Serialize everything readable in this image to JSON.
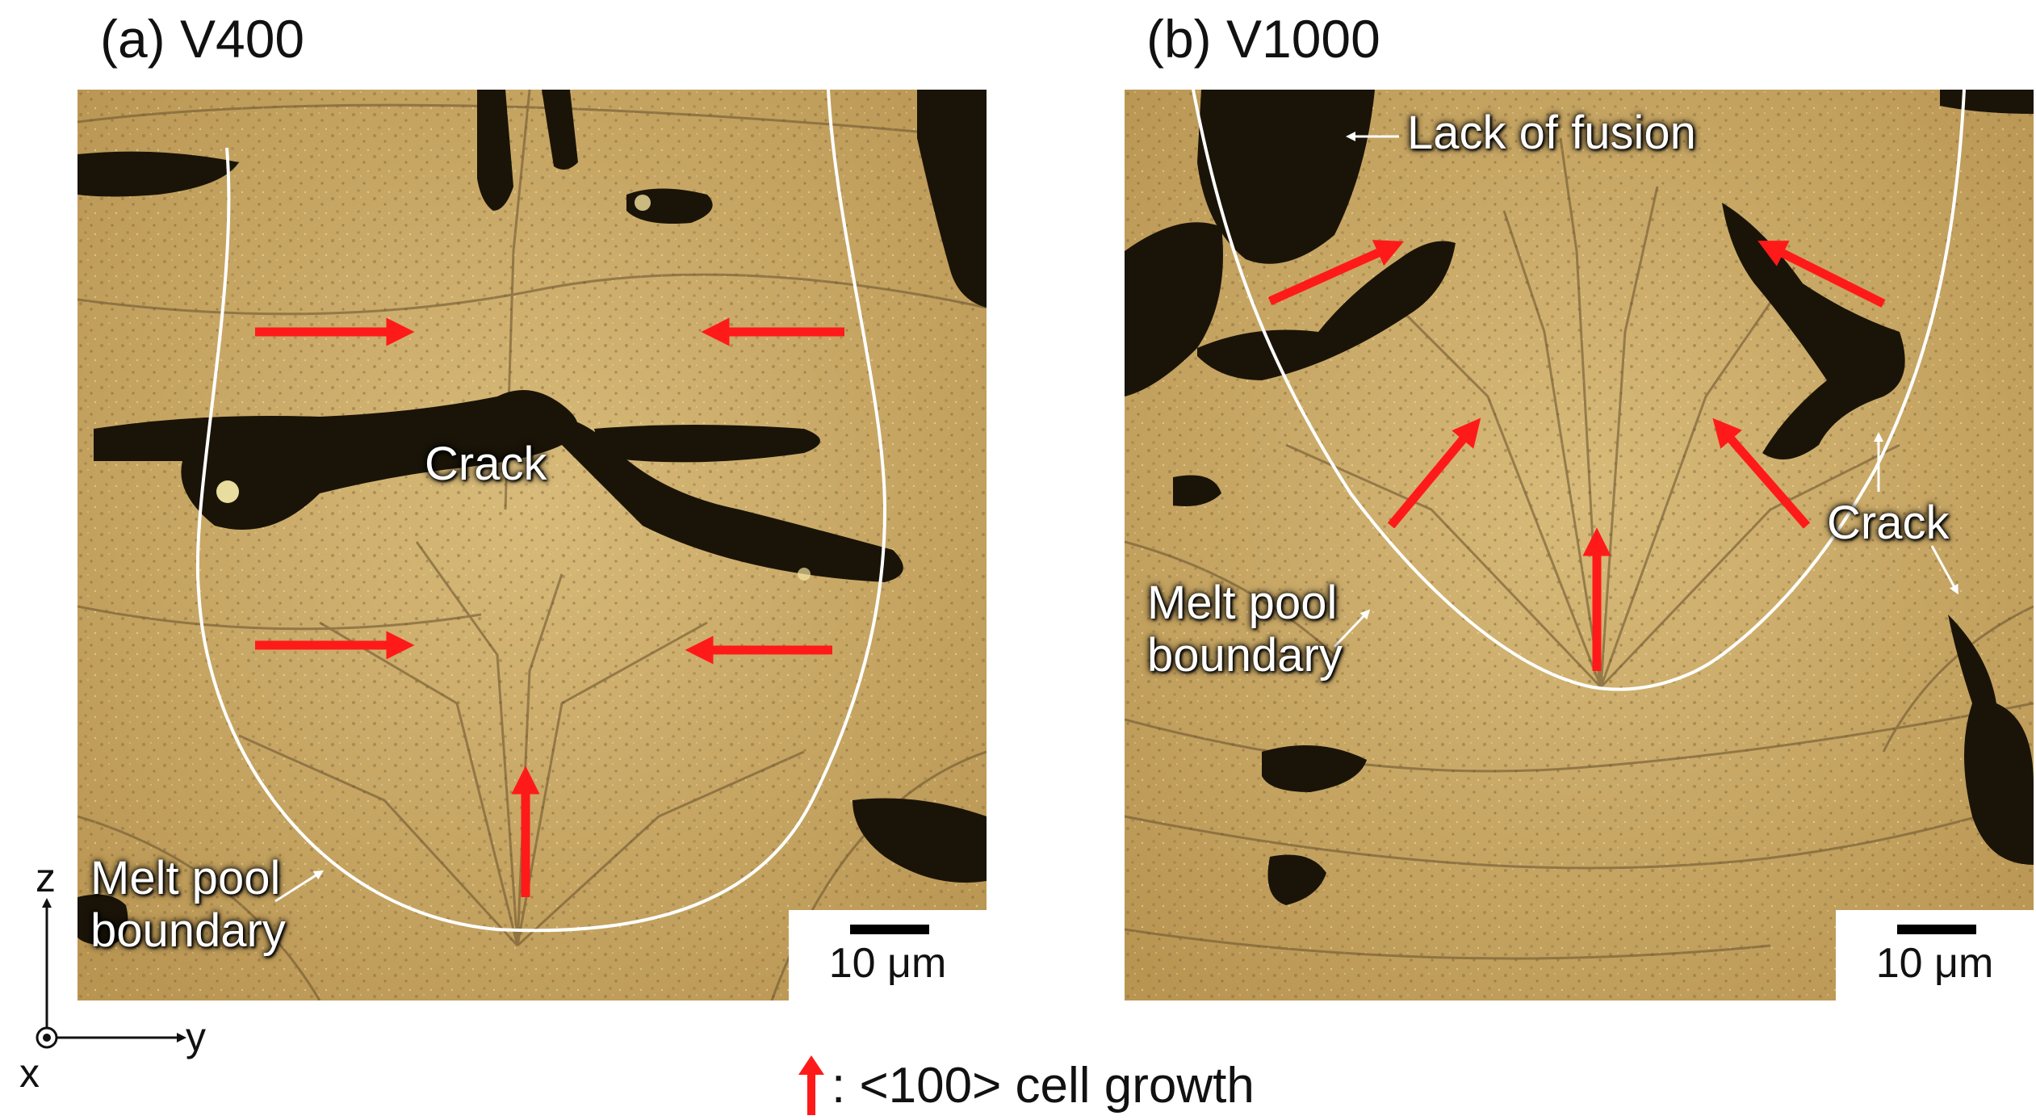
{
  "panel_a": {
    "title": "(a) V400",
    "labels": {
      "crack": "Crack",
      "melt_pool_boundary": "Melt pool\nboundary"
    },
    "scale_bar": "10 μm"
  },
  "panel_b": {
    "title": "(b) V1000",
    "labels": {
      "lack_of_fusion": "Lack of fusion",
      "crack": "Crack",
      "melt_pool_boundary": "Melt pool\nboundary"
    },
    "scale_bar": "10 μm"
  },
  "axes": {
    "z": "z",
    "x": "x",
    "y": "y"
  },
  "legend": {
    "text": ": <100> cell growth",
    "arrow_color": "#ff1a1a"
  },
  "colors": {
    "background_tone": "#c8a968",
    "boundary_line": "#ffffff",
    "growth_arrow": "#ff1a1a",
    "defect": "#1a1408"
  }
}
